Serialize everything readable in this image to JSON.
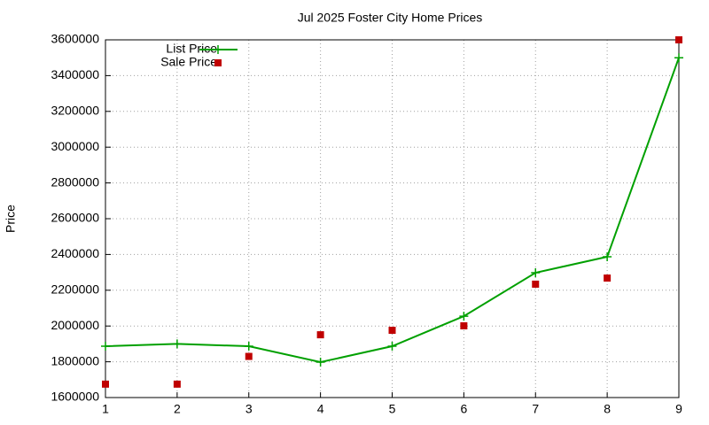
{
  "chart_data": {
    "type": "line",
    "title": "Jul 2025 Foster City Home Prices",
    "y_label": "Price",
    "x": [
      1,
      2,
      3,
      4,
      5,
      6,
      7,
      8,
      9
    ],
    "series": [
      {
        "name": "List Price",
        "color": "#00a000",
        "style": "linespoints",
        "values": [
          1887000,
          1900000,
          1887000,
          1798000,
          1887000,
          2055000,
          2298000,
          2387000,
          3500000
        ]
      },
      {
        "name": "Sale Price",
        "color": "#c00000",
        "style": "points",
        "values": [
          1675000,
          1675000,
          1830000,
          1951000,
          1976000,
          2001000,
          2234000,
          2268000,
          3600000
        ]
      }
    ],
    "xlim": [
      1,
      9
    ],
    "xticks": [
      1,
      2,
      3,
      4,
      5,
      6,
      7,
      8,
      9
    ],
    "ylim": [
      1600000,
      3600000
    ],
    "yticks": [
      1600000,
      1800000,
      2000000,
      2200000,
      2400000,
      2600000,
      2800000,
      3000000,
      3200000,
      3400000,
      3600000
    ],
    "grid": true,
    "legend": "top-left"
  }
}
